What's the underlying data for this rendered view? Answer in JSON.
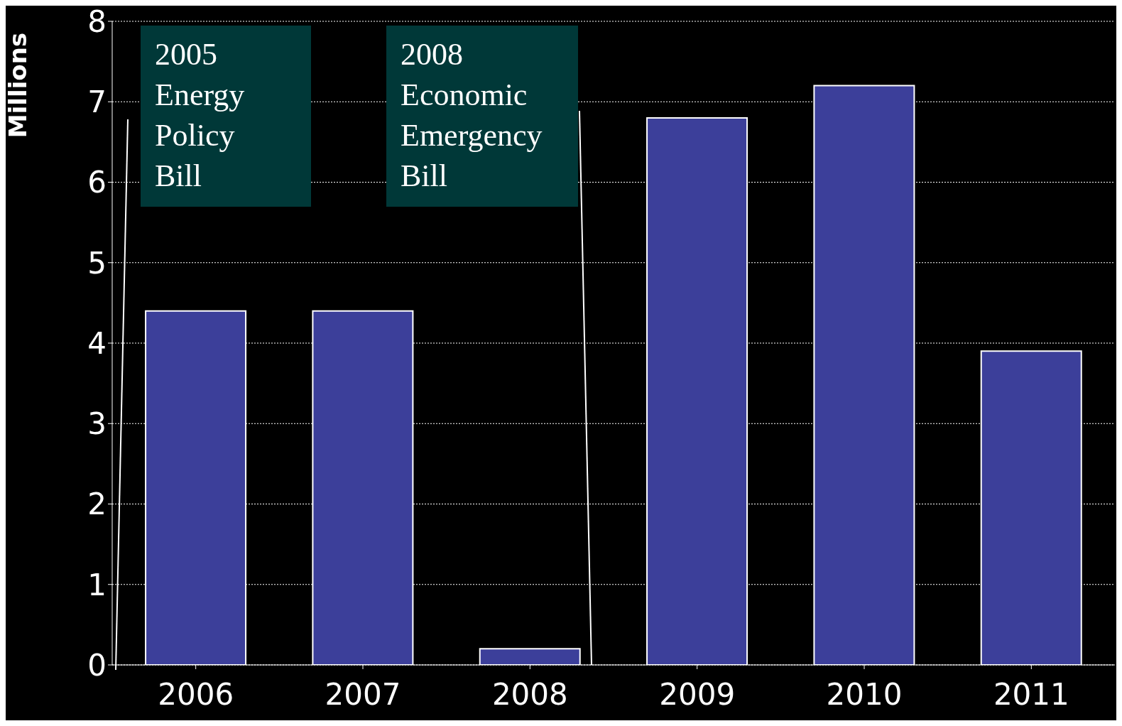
{
  "chart_data": {
    "type": "bar",
    "ylabel": "Millions",
    "categories": [
      "2006",
      "2007",
      "2008",
      "2009",
      "2010",
      "2011"
    ],
    "values": [
      4.4,
      4.4,
      0.2,
      6.8,
      7.2,
      3.9
    ],
    "color": "#3c3f9a",
    "ylim": [
      0,
      8
    ],
    "yticks": [
      0,
      1,
      2,
      3,
      4,
      5,
      6,
      7,
      8
    ],
    "grid": "y",
    "annotations": [
      "2005 Energy Policy Bill",
      "2008 Economic Emergency Bill"
    ]
  }
}
